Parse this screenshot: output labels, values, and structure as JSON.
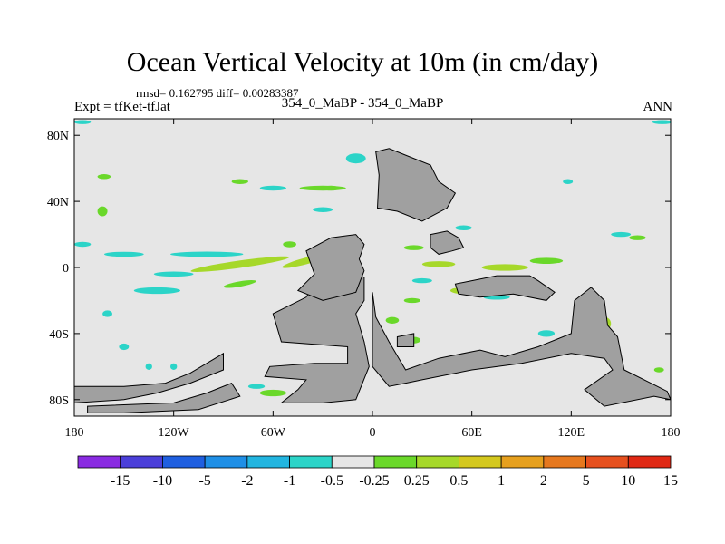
{
  "chart_data": {
    "type": "heatmap",
    "title": "Ocean Vertical Velocity at 10m (in cm/day)",
    "stats_label": "rmsd= 0.162795 diff= 0.00283387",
    "left_label": "Expt = tfKet-tfJat",
    "center_label": "354_0_MaBP - 354_0_MaBP",
    "right_label": "ANN",
    "xlim": [
      -180,
      180
    ],
    "ylim": [
      -90,
      90
    ],
    "x_ticks": [
      {
        "value": -180,
        "label": "180"
      },
      {
        "value": -120,
        "label": "120W"
      },
      {
        "value": -60,
        "label": "60W"
      },
      {
        "value": 0,
        "label": "0"
      },
      {
        "value": 60,
        "label": "60E"
      },
      {
        "value": 120,
        "label": "120E"
      },
      {
        "value": 180,
        "label": "180"
      }
    ],
    "y_ticks": [
      {
        "value": 80,
        "label": "80N"
      },
      {
        "value": 40,
        "label": "40N"
      },
      {
        "value": 0,
        "label": "0"
      },
      {
        "value": -40,
        "label": "40S"
      },
      {
        "value": -80,
        "label": "80S"
      }
    ],
    "background_color": "#e6e6e6",
    "land_color": "#a0a0a0",
    "colorbar": {
      "levels": [
        "-15",
        "-10",
        "-5",
        "-2",
        "-1",
        "-0.5",
        "-0.25",
        "0.25",
        "0.5",
        "1",
        "2",
        "5",
        "10",
        "15"
      ],
      "colors": [
        "#8a2be2",
        "#4b3fd9",
        "#1f5fe0",
        "#1f8fe6",
        "#22b5e0",
        "#2cd4c8",
        "#e6e6e6",
        "#6ad82a",
        "#a6d82a",
        "#d4c81e",
        "#e6a01e",
        "#e6781e",
        "#e6501e",
        "#e02814"
      ]
    },
    "land_polygons": [
      [
        [
          -180,
          -72
        ],
        [
          -150,
          -72
        ],
        [
          -125,
          -70
        ],
        [
          -110,
          -64
        ],
        [
          -100,
          -58
        ],
        [
          -90,
          -52
        ],
        [
          -90,
          -62
        ],
        [
          -110,
          -70
        ],
        [
          -130,
          -76
        ],
        [
          -150,
          -80
        ],
        [
          -180,
          -82
        ]
      ],
      [
        [
          -172,
          -84
        ],
        [
          -120,
          -82
        ],
        [
          -100,
          -76
        ],
        [
          -85,
          -70
        ],
        [
          -80,
          -78
        ],
        [
          -105,
          -86
        ],
        [
          -150,
          -88
        ],
        [
          -172,
          -88
        ]
      ],
      [
        [
          -55,
          -82
        ],
        [
          -45,
          -74
        ],
        [
          -40,
          -68
        ],
        [
          -65,
          -66
        ],
        [
          -62,
          -60
        ],
        [
          -35,
          -58
        ],
        [
          -15,
          -58
        ],
        [
          -15,
          -48
        ],
        [
          -55,
          -45
        ],
        [
          -60,
          -28
        ],
        [
          -40,
          -18
        ],
        [
          -35,
          -10
        ],
        [
          -30,
          -8
        ],
        [
          -25,
          -4
        ],
        [
          -15,
          -2
        ],
        [
          -5,
          -6
        ],
        [
          -5,
          -20
        ],
        [
          -10,
          -28
        ],
        [
          -5,
          -45
        ],
        [
          -2,
          -60
        ],
        [
          -10,
          -80
        ],
        [
          -30,
          -82
        ]
      ],
      [
        [
          -45,
          -14
        ],
        [
          -35,
          -4
        ],
        [
          -40,
          10
        ],
        [
          -25,
          18
        ],
        [
          -10,
          20
        ],
        [
          -5,
          14
        ],
        [
          -8,
          5
        ],
        [
          -5,
          -2
        ],
        [
          -10,
          -15
        ],
        [
          -30,
          -20
        ]
      ],
      [
        [
          0,
          -15
        ],
        [
          2,
          -30
        ],
        [
          10,
          -45
        ],
        [
          20,
          -62
        ],
        [
          40,
          -55
        ],
        [
          65,
          -50
        ],
        [
          80,
          -54
        ],
        [
          100,
          -48
        ],
        [
          120,
          -40
        ],
        [
          122,
          -20
        ],
        [
          132,
          -12
        ],
        [
          140,
          -20
        ],
        [
          142,
          -35
        ],
        [
          148,
          -42
        ],
        [
          152,
          -62
        ],
        [
          168,
          -70
        ],
        [
          178,
          -75
        ],
        [
          180,
          -80
        ],
        [
          170,
          -78
        ],
        [
          140,
          -84
        ],
        [
          128,
          -74
        ],
        [
          145,
          -62
        ],
        [
          140,
          -55
        ],
        [
          120,
          -52
        ],
        [
          90,
          -58
        ],
        [
          60,
          -62
        ],
        [
          40,
          -66
        ],
        [
          30,
          -68
        ],
        [
          20,
          -70
        ],
        [
          10,
          -72
        ],
        [
          0,
          -60
        ],
        [
          0,
          -40
        ]
      ],
      [
        [
          2,
          70
        ],
        [
          4,
          56
        ],
        [
          3,
          36
        ],
        [
          15,
          34
        ],
        [
          30,
          28
        ],
        [
          45,
          36
        ],
        [
          50,
          45
        ],
        [
          40,
          52
        ],
        [
          35,
          62
        ],
        [
          20,
          68
        ],
        [
          10,
          72
        ]
      ],
      [
        [
          35,
          20
        ],
        [
          45,
          22
        ],
        [
          52,
          18
        ],
        [
          55,
          12
        ],
        [
          48,
          10
        ],
        [
          40,
          8
        ],
        [
          35,
          12
        ]
      ],
      [
        [
          50,
          -10
        ],
        [
          60,
          -8
        ],
        [
          75,
          -5
        ],
        [
          95,
          -5
        ],
        [
          100,
          -8
        ],
        [
          110,
          -15
        ],
        [
          105,
          -20
        ],
        [
          85,
          -16
        ],
        [
          65,
          -18
        ],
        [
          52,
          -16
        ]
      ],
      [
        [
          15,
          -42
        ],
        [
          25,
          -40
        ],
        [
          25,
          -48
        ],
        [
          15,
          -48
        ]
      ]
    ],
    "velocity_patches": [
      {
        "lon": -80,
        "lat": 2,
        "rx": 30,
        "ry": 2.2,
        "rot": -8,
        "level": "0.5"
      },
      {
        "lon": -40,
        "lat": 4,
        "rx": 15,
        "ry": 2,
        "rot": -15,
        "level": "0.5"
      },
      {
        "lon": -100,
        "lat": 8,
        "rx": 22,
        "ry": 1.6,
        "rot": 0,
        "level": "-0.5"
      },
      {
        "lon": -150,
        "lat": 8,
        "rx": 12,
        "ry": 1.5,
        "rot": 0,
        "level": "-0.5"
      },
      {
        "lon": -130,
        "lat": -14,
        "rx": 14,
        "ry": 2,
        "rot": 0,
        "level": "-0.5"
      },
      {
        "lon": -120,
        "lat": -4,
        "rx": 12,
        "ry": 1.5,
        "rot": 0,
        "level": "-0.5"
      },
      {
        "lon": -80,
        "lat": -10,
        "rx": 10,
        "ry": 1.6,
        "rot": -10,
        "level": "0.25"
      },
      {
        "lon": -30,
        "lat": -12,
        "rx": 6,
        "ry": 1.5,
        "rot": 0,
        "level": "0.25"
      },
      {
        "lon": -50,
        "lat": 14,
        "rx": 4,
        "ry": 1.8,
        "rot": 0,
        "level": "0.25"
      },
      {
        "lon": -163,
        "lat": 34,
        "rx": 3,
        "ry": 3,
        "rot": 0,
        "level": "0.25"
      },
      {
        "lon": -162,
        "lat": 55,
        "rx": 4,
        "ry": 1.5,
        "rot": 0,
        "level": "0.25"
      },
      {
        "lon": -80,
        "lat": 52,
        "rx": 5,
        "ry": 1.5,
        "rot": 0,
        "level": "0.25"
      },
      {
        "lon": -60,
        "lat": 48,
        "rx": 8,
        "ry": 1.5,
        "rot": 0,
        "level": "-0.5"
      },
      {
        "lon": -30,
        "lat": 35,
        "rx": 6,
        "ry": 1.5,
        "rot": 0,
        "level": "-0.5"
      },
      {
        "lon": -30,
        "lat": 48,
        "rx": 14,
        "ry": 1.5,
        "rot": 0,
        "level": "0.25"
      },
      {
        "lon": -175,
        "lat": 14,
        "rx": 5,
        "ry": 1.5,
        "rot": 0,
        "level": "-0.5"
      },
      {
        "lon": -175,
        "lat": 88,
        "rx": 5,
        "ry": 1.2,
        "rot": 0,
        "level": "-0.5"
      },
      {
        "lon": 175,
        "lat": 88,
        "rx": 6,
        "ry": 1.2,
        "rot": 0,
        "level": "-0.5"
      },
      {
        "lon": -160,
        "lat": -28,
        "rx": 3,
        "ry": 2,
        "rot": 0,
        "level": "-0.5"
      },
      {
        "lon": -150,
        "lat": -48,
        "rx": 3,
        "ry": 2,
        "rot": 0,
        "level": "-0.5"
      },
      {
        "lon": -135,
        "lat": -60,
        "rx": 2,
        "ry": 2,
        "rot": 0,
        "level": "-0.5"
      },
      {
        "lon": -120,
        "lat": -60,
        "rx": 2,
        "ry": 2,
        "rot": 0,
        "level": "-0.5"
      },
      {
        "lon": -10,
        "lat": 66,
        "rx": 6,
        "ry": 3,
        "rot": 0,
        "level": "-0.5"
      },
      {
        "lon": -25,
        "lat": 48,
        "rx": 5,
        "ry": 1.5,
        "rot": 0,
        "level": "0.25"
      },
      {
        "lon": 10,
        "lat": 50,
        "rx": 4,
        "ry": 1.5,
        "rot": 0,
        "level": "-0.5"
      },
      {
        "lon": 25,
        "lat": 12,
        "rx": 6,
        "ry": 1.5,
        "rot": 0,
        "level": "0.25"
      },
      {
        "lon": 55,
        "lat": 24,
        "rx": 5,
        "ry": 1.5,
        "rot": 0,
        "level": "-0.5"
      },
      {
        "lon": 80,
        "lat": 0,
        "rx": 14,
        "ry": 2,
        "rot": 0,
        "level": "0.5"
      },
      {
        "lon": 105,
        "lat": 4,
        "rx": 10,
        "ry": 1.8,
        "rot": 0,
        "level": "0.25"
      },
      {
        "lon": 40,
        "lat": 2,
        "rx": 10,
        "ry": 1.8,
        "rot": 0,
        "level": "0.5"
      },
      {
        "lon": 30,
        "lat": -8,
        "rx": 6,
        "ry": 1.5,
        "rot": 0,
        "level": "-0.5"
      },
      {
        "lon": 55,
        "lat": -14,
        "rx": 8,
        "ry": 2,
        "rot": 0,
        "level": "0.5"
      },
      {
        "lon": 75,
        "lat": -18,
        "rx": 8,
        "ry": 1.5,
        "rot": 0,
        "level": "-0.5"
      },
      {
        "lon": 12,
        "lat": -32,
        "rx": 4,
        "ry": 2,
        "rot": 0,
        "level": "0.25"
      },
      {
        "lon": 24,
        "lat": -20,
        "rx": 5,
        "ry": 1.5,
        "rot": 0,
        "level": "0.25"
      },
      {
        "lon": 25,
        "lat": -44,
        "rx": 4,
        "ry": 2,
        "rot": 0,
        "level": "0.25"
      },
      {
        "lon": 105,
        "lat": -40,
        "rx": 5,
        "ry": 2,
        "rot": 0,
        "level": "-0.5"
      },
      {
        "lon": 140,
        "lat": -34,
        "rx": 4,
        "ry": 4,
        "rot": 0,
        "level": "0.5"
      },
      {
        "lon": 145,
        "lat": -46,
        "rx": 3,
        "ry": 3,
        "rot": 0,
        "level": "0.5"
      },
      {
        "lon": 173,
        "lat": -62,
        "rx": 3,
        "ry": 1.5,
        "rot": 0,
        "level": "0.25"
      },
      {
        "lon": -60,
        "lat": -76,
        "rx": 8,
        "ry": 2,
        "rot": 0,
        "level": "0.25"
      },
      {
        "lon": -70,
        "lat": -72,
        "rx": 5,
        "ry": 1.5,
        "rot": 0,
        "level": "-0.5"
      },
      {
        "lon": -20,
        "lat": -62,
        "rx": 6,
        "ry": 1.5,
        "rot": 0,
        "level": "-0.5"
      },
      {
        "lon": 150,
        "lat": 20,
        "rx": 6,
        "ry": 1.5,
        "rot": 0,
        "level": "-0.5"
      },
      {
        "lon": 160,
        "lat": 18,
        "rx": 5,
        "ry": 1.5,
        "rot": 0,
        "level": "0.25"
      },
      {
        "lon": 118,
        "lat": 52,
        "rx": 3,
        "ry": 1.5,
        "rot": 0,
        "level": "-0.5"
      }
    ]
  }
}
